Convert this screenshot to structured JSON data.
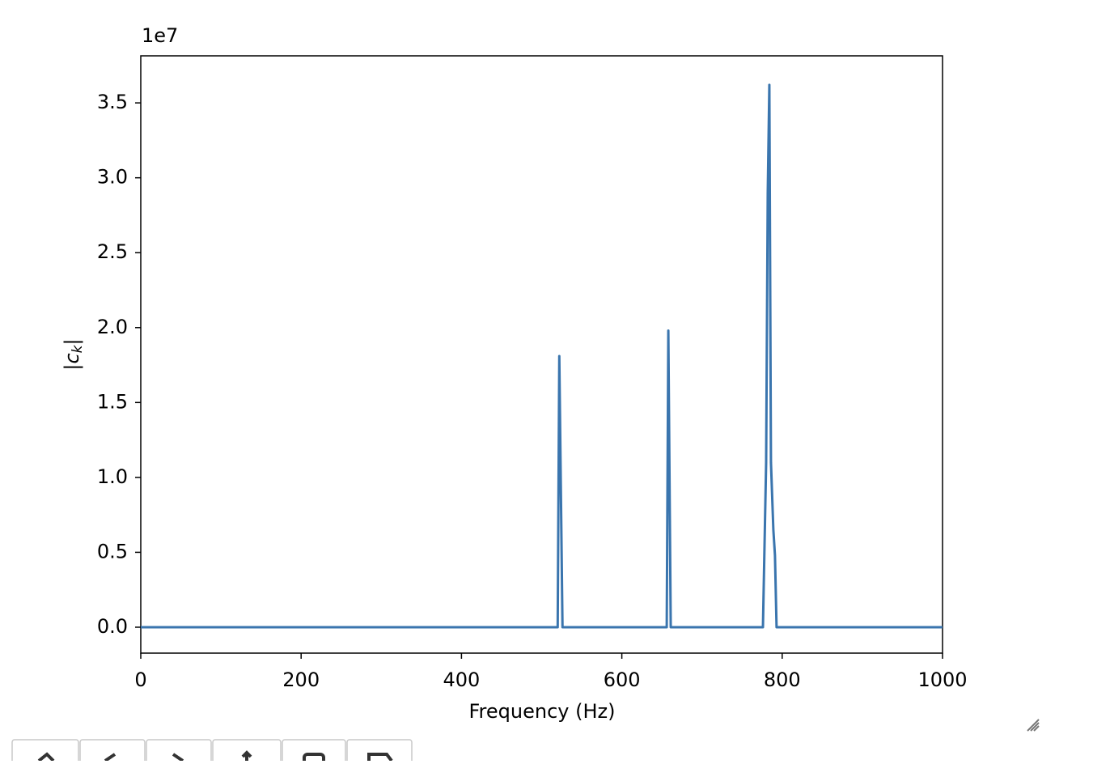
{
  "chart_data": {
    "type": "line",
    "offset_label": "1e7",
    "xlabel": "Frequency (Hz)",
    "ylabel": {
      "bar": "|",
      "symbol": "c",
      "subscript": "k"
    },
    "x": [
      0,
      520,
      522,
      526,
      656,
      658,
      661,
      776,
      780,
      782,
      784,
      786,
      789,
      791,
      793,
      1000
    ],
    "series": [
      {
        "color": "#3a75ae",
        "values": [
          0,
          0,
          1.81,
          0,
          0,
          1.98,
          0,
          0,
          1.1,
          2.9,
          3.62,
          1.1,
          0.65,
          0.48,
          0,
          0
        ]
      }
    ],
    "xlim": [
      0,
      1000
    ],
    "xticks": [
      0,
      200,
      400,
      600,
      800,
      1000
    ],
    "ylim": [
      -0.173,
      3.814
    ],
    "yticks": [
      {
        "value": 0,
        "label": "0.0"
      },
      0.5,
      {
        "value": 1,
        "label": "1.0"
      },
      1.5,
      {
        "value": 2,
        "label": "2.0"
      },
      2.5,
      {
        "value": 3,
        "label": "3.0"
      },
      3.5
    ]
  }
}
